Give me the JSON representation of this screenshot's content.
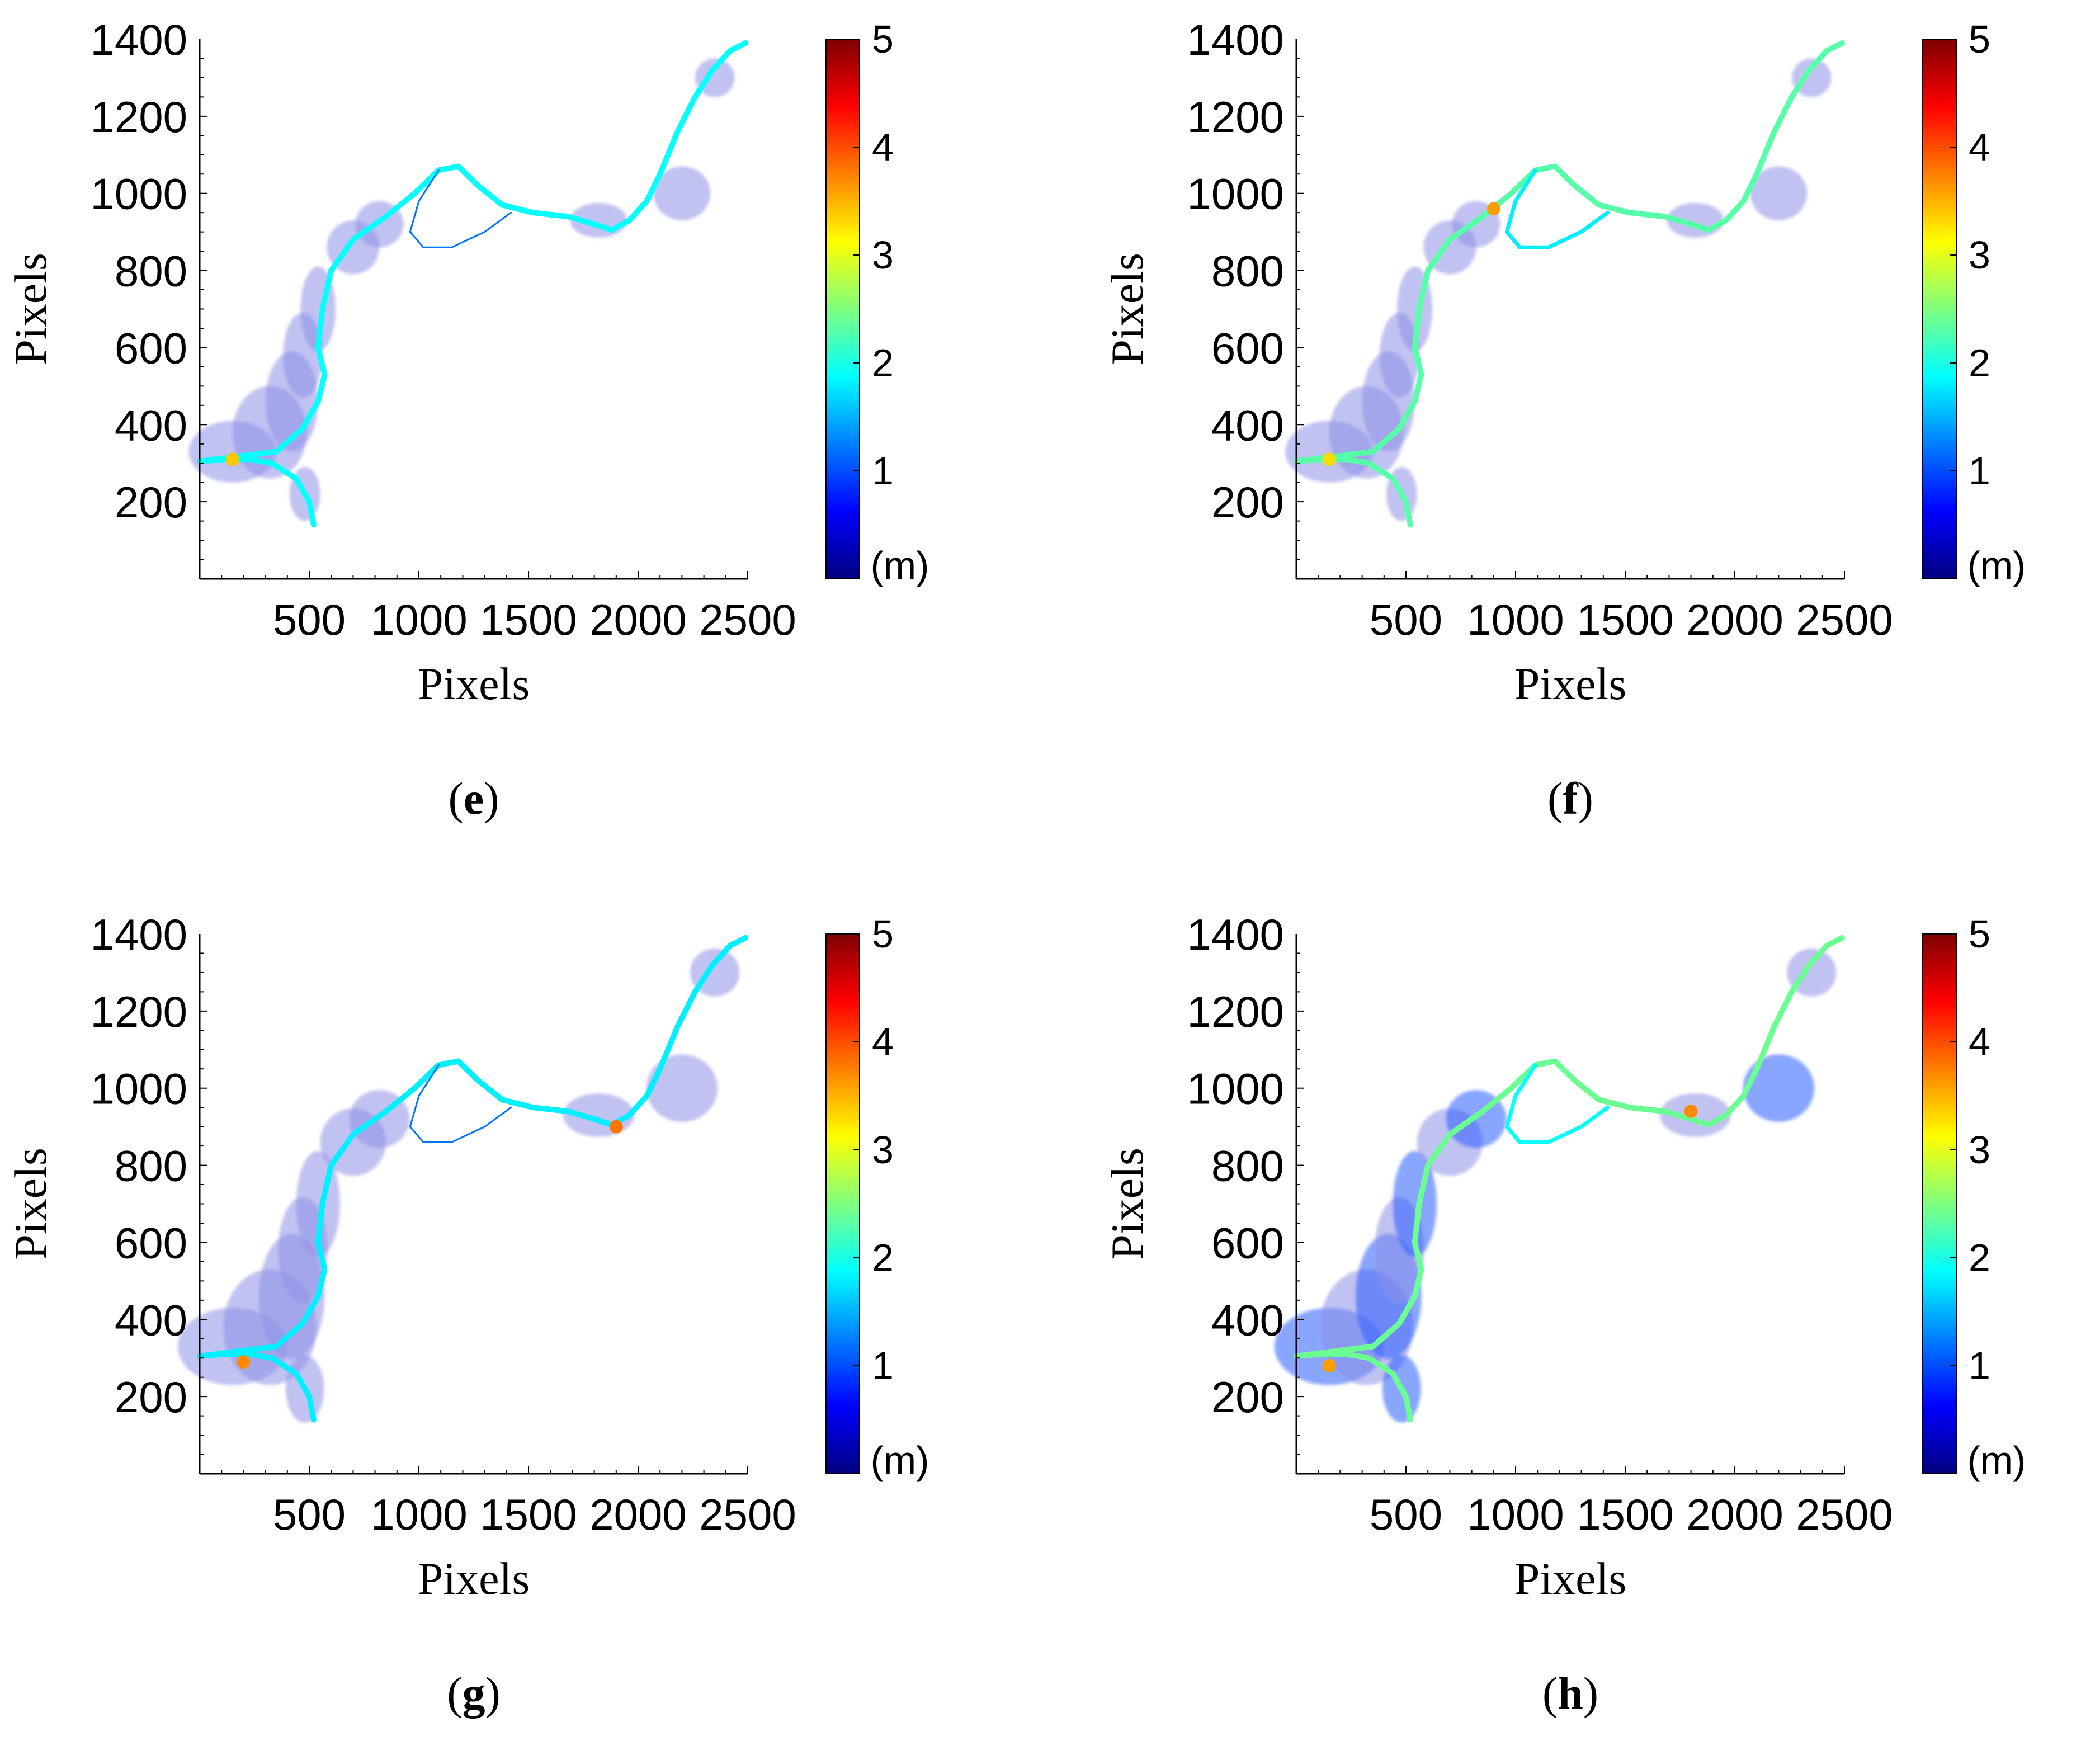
{
  "figure_title": "",
  "colorbar": {
    "range": [
      0,
      5
    ],
    "ticks": [
      "1",
      "2",
      "3",
      "4",
      "5"
    ],
    "unit": "(m)",
    "colormap": "jet",
    "stops": [
      "#00007f",
      "#0000ff",
      "#007fff",
      "#00ffff",
      "#7fff7f",
      "#ffff00",
      "#ff7f00",
      "#ff0000",
      "#7f0000"
    ]
  },
  "colors": {
    "low_confidence_fill": "#8c8fe6",
    "axis": "#000000"
  },
  "chart_data": [
    {
      "type": "heatmap",
      "panel": "e",
      "panel_label": "e",
      "xlabel": "Pixels",
      "ylabel": "Pixels",
      "xlim": [
        0,
        2500
      ],
      "ylim": [
        0,
        1400
      ],
      "xticks": [
        "500",
        "1000",
        "1500",
        "2000",
        "2500"
      ],
      "yticks": [
        "200",
        "400",
        "600",
        "800",
        "1000",
        "1200",
        "1400"
      ],
      "value_range": [
        0,
        5
      ],
      "summary": "River channel mostly 1.5–2.2 m (cyan); broad low-value floodplain patches; small 3–4 m spots near x≈150,y≈300",
      "channel_value": 1.9,
      "hotspots": [
        {
          "x": 150,
          "y": 310,
          "value": 3.4
        }
      ]
    },
    {
      "type": "heatmap",
      "panel": "f",
      "panel_label": "f",
      "xlabel": "Pixels",
      "ylabel": "Pixels",
      "xlim": [
        0,
        2500
      ],
      "ylim": [
        0,
        1400
      ],
      "xticks": [
        "500",
        "1000",
        "1500",
        "2000",
        "2500"
      ],
      "yticks": [
        "200",
        "400",
        "600",
        "800",
        "1000",
        "1200",
        "1400"
      ],
      "value_range": [
        0,
        5
      ],
      "summary": "Channel 1–3 m with green/yellow sections; blue floodplain branches; orange spots near x≈900,y≈960 and x≈150,y≈310",
      "channel_value": 2.3,
      "hotspots": [
        {
          "x": 900,
          "y": 960,
          "value": 3.6
        },
        {
          "x": 150,
          "y": 310,
          "value": 3.3
        }
      ]
    },
    {
      "type": "heatmap",
      "panel": "g",
      "panel_label": "g",
      "xlabel": "Pixels",
      "ylabel": "Pixels",
      "xlim": [
        0,
        2500
      ],
      "ylim": [
        0,
        1400
      ],
      "xticks": [
        "500",
        "1000",
        "1500",
        "2000",
        "2500"
      ],
      "yticks": [
        "200",
        "400",
        "600",
        "800",
        "1000",
        "1200",
        "1400"
      ],
      "value_range": [
        0,
        5
      ],
      "summary": "Mostly low-value floodplain; thin cyan channel segments near the middle; orange spots near x≈1900,y≈900 and x≈200,y≈290",
      "channel_value": 1.8,
      "hotspots": [
        {
          "x": 1900,
          "y": 900,
          "value": 3.8
        },
        {
          "x": 200,
          "y": 290,
          "value": 3.7
        }
      ]
    },
    {
      "type": "heatmap",
      "panel": "h",
      "panel_label": "h",
      "xlabel": "Pixels",
      "ylabel": "Pixels",
      "xlim": [
        0,
        2500
      ],
      "ylim": [
        0,
        1400
      ],
      "xticks": [
        "500",
        "1000",
        "1500",
        "2000",
        "2500"
      ],
      "yticks": [
        "200",
        "400",
        "600",
        "800",
        "1000",
        "1200",
        "1400"
      ],
      "value_range": [
        0,
        5
      ],
      "summary": "Channel 1–3.5 m; extensive blue (≈0.5–1 m) floodplain areas; orange spots near x≈1800,y≈940 and x≈150,y≈280",
      "channel_value": 2.4,
      "hotspots": [
        {
          "x": 1800,
          "y": 940,
          "value": 3.7
        },
        {
          "x": 150,
          "y": 280,
          "value": 3.6
        }
      ]
    }
  ]
}
